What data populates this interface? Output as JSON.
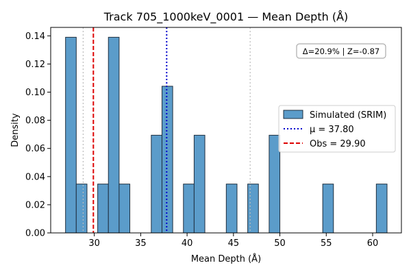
{
  "chart_data": {
    "type": "bar",
    "title": "Track 705_1000keV_0001 — Mean Depth (Å)",
    "xlabel": "Mean Depth (Å)",
    "ylabel": "Density",
    "xlim": [
      25.3,
      63.1
    ],
    "ylim": [
      0,
      0.146
    ],
    "xticks": [
      30,
      35,
      40,
      45,
      50,
      55,
      60
    ],
    "yticks": [
      0.0,
      0.02,
      0.04,
      0.06,
      0.08,
      0.1,
      0.12,
      0.14
    ],
    "ytick_labels": [
      "0.00",
      "0.02",
      "0.04",
      "0.06",
      "0.08",
      "0.10",
      "0.12",
      "0.14"
    ],
    "bin_width": 1.155,
    "series": [
      {
        "name": "Simulated (SRIM)",
        "color": "#5b9cca",
        "edge_color": "#1f2f3f",
        "bins": [
          {
            "x0": 26.9,
            "value": 0.139
          },
          {
            "x0": 28.055,
            "value": 0.0347
          },
          {
            "x0": 30.365,
            "value": 0.0347
          },
          {
            "x0": 31.52,
            "value": 0.139
          },
          {
            "x0": 32.675,
            "value": 0.0347
          },
          {
            "x0": 36.14,
            "value": 0.0694
          },
          {
            "x0": 37.295,
            "value": 0.1042
          },
          {
            "x0": 39.605,
            "value": 0.0347
          },
          {
            "x0": 40.76,
            "value": 0.0694
          },
          {
            "x0": 44.225,
            "value": 0.0347
          },
          {
            "x0": 46.535,
            "value": 0.0347
          },
          {
            "x0": 48.845,
            "value": 0.0694
          },
          {
            "x0": 54.62,
            "value": 0.0347
          },
          {
            "x0": 60.395,
            "value": 0.0347
          }
        ]
      }
    ],
    "reference_lines": [
      {
        "name": "mu",
        "label": "μ = 37.80",
        "x": 37.8,
        "color": "#0000cc",
        "style": "dotted"
      },
      {
        "name": "obs",
        "label": "Obs = 29.90",
        "x": 29.9,
        "color": "#dd0000",
        "style": "dashed"
      },
      {
        "name": "band-low",
        "x": 28.8,
        "color": "#bbbbbb",
        "style": "dotted"
      },
      {
        "name": "band-high",
        "x": 46.8,
        "color": "#bbbbbb",
        "style": "dotted"
      }
    ],
    "annotation": "Δ=20.9% | Z=-0.87",
    "legend_position": "center-right",
    "grid": false
  }
}
